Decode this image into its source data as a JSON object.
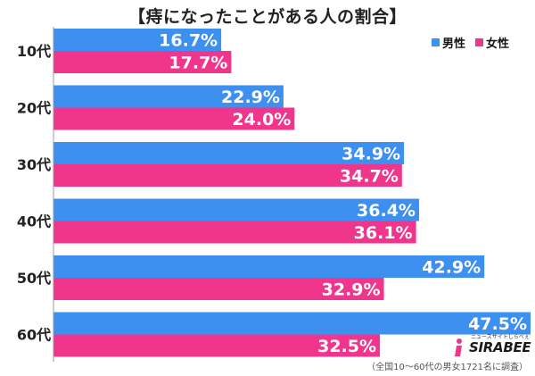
{
  "title": "【痔になったことがある人の割合】",
  "legend": [
    {
      "label": "男性",
      "color": "#3d8ff0"
    },
    {
      "label": "女性",
      "color": "#f0368c"
    }
  ],
  "note": "（全国10～60代の男女1721名に調査）",
  "logo": {
    "text": "SIRABEE",
    "sub": "ニュースサイトしらべぇ"
  },
  "chart_data": {
    "type": "bar",
    "orientation": "horizontal",
    "categories": [
      "10代",
      "20代",
      "30代",
      "40代",
      "50代",
      "60代"
    ],
    "series": [
      {
        "name": "男性",
        "color": "#3d8ff0",
        "values": [
          16.7,
          22.9,
          34.9,
          36.4,
          42.9,
          47.5
        ]
      },
      {
        "name": "女性",
        "color": "#f0368c",
        "values": [
          17.7,
          24.0,
          34.7,
          36.1,
          32.9,
          32.5
        ]
      }
    ],
    "value_format": "%",
    "xlim": [
      0,
      47.5
    ]
  }
}
